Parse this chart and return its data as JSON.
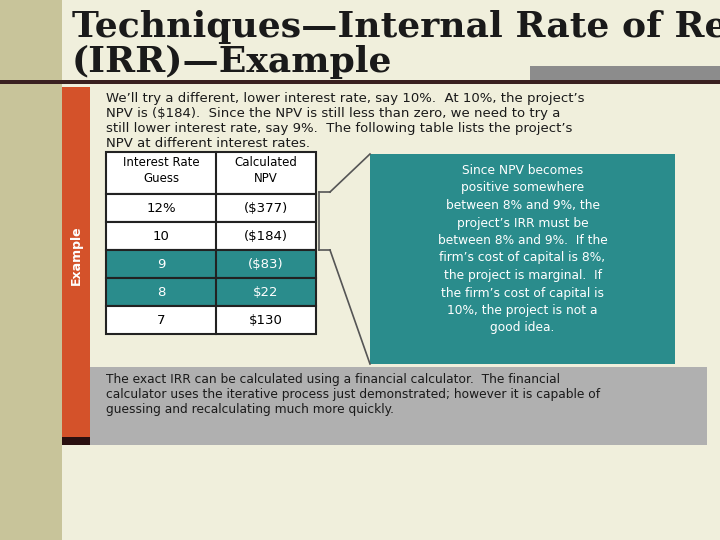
{
  "title_line1": "Techniques—Internal Rate of Return",
  "title_line2": "(IRR)—Example",
  "bg_color": "#f0efdc",
  "title_color": "#1a1a1a",
  "orange_bar_color": "#d4522a",
  "teal_box_color": "#2a8c8c",
  "gray_bottom_color": "#b0b0b0",
  "dark_separator_color": "#3a2020",
  "gray_accent_color": "#8c8c8c",
  "body_text_1": "We’ll try a different, lower interest rate, say 10%.  At 10%, the project’s",
  "body_text_2": "NPV is ($184).  Since the NPV is still less than zero, we need to try a",
  "body_text_3": "still lower interest rate, say 9%.  The following table lists the project’s",
  "body_text_4": "NPV at different interest rates.",
  "table_headers": [
    "Interest Rate\nGuess",
    "Calculated\nNPV"
  ],
  "table_rows": [
    [
      "12%",
      "($377)",
      false
    ],
    [
      "10",
      "($184)",
      false
    ],
    [
      "9",
      "($83)",
      true
    ],
    [
      "8",
      "$22",
      true
    ],
    [
      "7",
      "$130",
      false
    ]
  ],
  "teal_text": "Since NPV becomes\npositive somewhere\nbetween 8% and 9%, the\nproject’s IRR must be\nbetween 8% and 9%.  If the\nfirm’s cost of capital is 8%,\nthe project is marginal.  If\nthe firm’s cost of capital is\n10%, the project is not a\ngood idea.",
  "bottom_text_1": "The exact IRR can be calculated using a financial calculator.  The financial",
  "bottom_text_2": "calculator uses the iterative process just demonstrated; however it is capable of",
  "bottom_text_3": "guessing and recalculating much more quickly.",
  "example_label": "Example",
  "table_bg_white": "#ffffff",
  "table_bg_teal": "#2a8c8c",
  "table_border": "#222222",
  "teal_text_color": "#ffffff",
  "bottom_text_color": "#1a1a1a",
  "left_bar_color": "#8c8070"
}
